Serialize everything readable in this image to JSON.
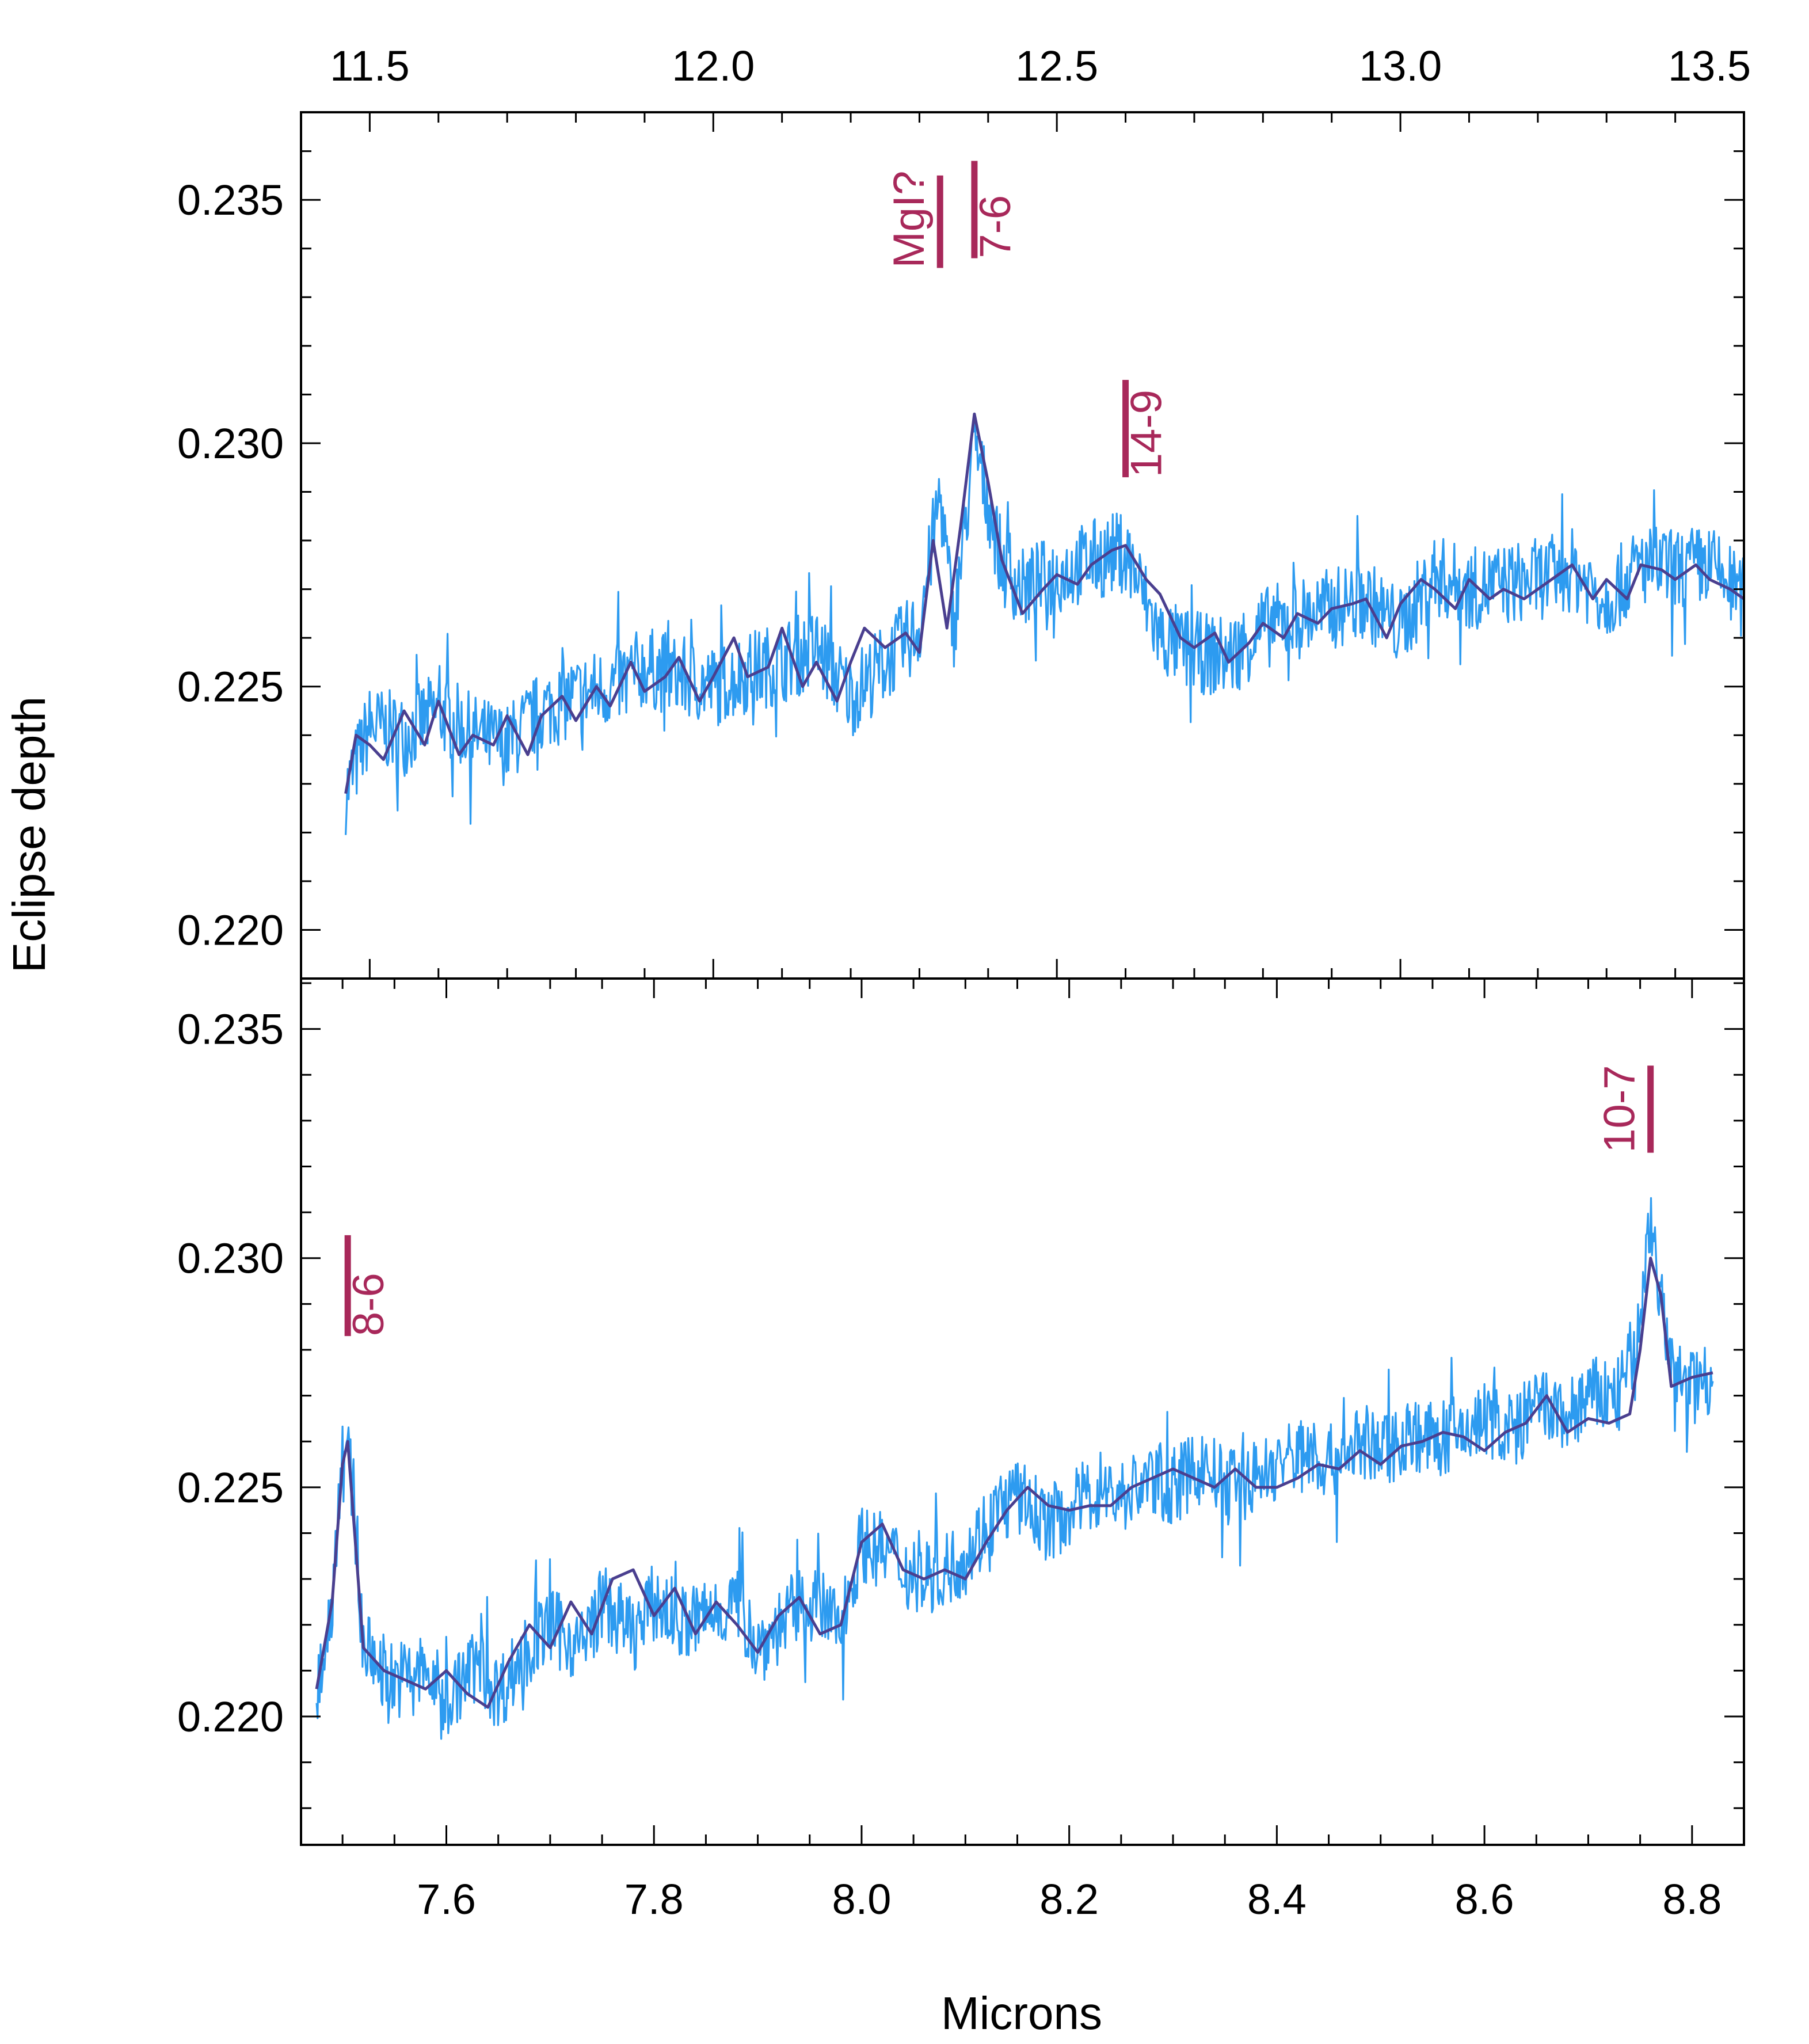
{
  "figure": {
    "ylabel": "Eclipse depth",
    "xlabel_bottom": "Microns"
  },
  "colors": {
    "noisy": "#2d9bf0",
    "smooth": "#4a3f8f",
    "marker": "#a8285a",
    "axes": "#000000"
  },
  "chart_data": [
    {
      "type": "line",
      "panel": "top",
      "xlim": [
        11.4,
        13.5
      ],
      "ylim": [
        0.219,
        0.2368
      ],
      "xticks": [
        "11.5",
        "12.0",
        "12.5",
        "13.0",
        "13.5"
      ],
      "xtick_values": [
        11.5,
        12.0,
        12.5,
        13.0,
        13.5
      ],
      "yticks": [
        "0.220",
        "0.225",
        "0.230",
        "0.235"
      ],
      "ytick_values": [
        0.22,
        0.225,
        0.23,
        0.235
      ],
      "xaxis_position": "top",
      "series": [
        {
          "style": "noisy",
          "x": [
            11.465,
            11.5,
            11.55,
            11.6,
            11.65,
            11.7,
            11.75,
            11.8,
            11.85,
            11.9,
            11.95,
            12.0,
            12.05,
            12.1,
            12.15,
            12.2,
            12.25,
            12.3,
            12.33,
            12.35,
            12.38,
            12.4,
            12.42,
            12.45,
            12.5,
            12.55,
            12.6,
            12.65,
            12.7,
            12.75,
            12.8,
            12.85,
            12.9,
            12.95,
            13.0,
            13.05,
            13.1,
            13.15,
            13.2,
            13.25,
            13.3,
            13.35,
            13.4,
            13.45,
            13.5
          ],
          "y": [
            0.2228,
            0.2242,
            0.224,
            0.2245,
            0.224,
            0.2238,
            0.2245,
            0.2248,
            0.225,
            0.2254,
            0.2252,
            0.225,
            0.2253,
            0.2255,
            0.2258,
            0.2248,
            0.2255,
            0.2262,
            0.229,
            0.2262,
            0.23,
            0.2288,
            0.2275,
            0.227,
            0.2273,
            0.2276,
            0.2278,
            0.226,
            0.2257,
            0.2256,
            0.2262,
            0.2264,
            0.2266,
            0.2268,
            0.2262,
            0.2273,
            0.227,
            0.2271,
            0.2272,
            0.2274,
            0.2268,
            0.2275,
            0.2274,
            0.2275,
            0.2268
          ]
        },
        {
          "style": "smooth",
          "x": [
            11.465,
            11.48,
            11.5,
            11.52,
            11.55,
            11.58,
            11.6,
            11.63,
            11.65,
            11.68,
            11.7,
            11.73,
            11.75,
            11.78,
            11.8,
            11.83,
            11.85,
            11.88,
            11.9,
            11.93,
            11.95,
            11.98,
            12.0,
            12.03,
            12.05,
            12.08,
            12.1,
            12.13,
            12.15,
            12.18,
            12.2,
            12.22,
            12.25,
            12.28,
            12.3,
            12.32,
            12.34,
            12.36,
            12.38,
            12.4,
            12.42,
            12.45,
            12.48,
            12.5,
            12.53,
            12.55,
            12.58,
            12.6,
            12.63,
            12.65,
            12.68,
            12.7,
            12.73,
            12.75,
            12.78,
            12.8,
            12.83,
            12.85,
            12.88,
            12.9,
            12.93,
            12.95,
            12.98,
            13.0,
            13.03,
            13.05,
            13.08,
            13.1,
            13.13,
            13.15,
            13.18,
            13.2,
            13.23,
            13.25,
            13.28,
            13.3,
            13.33,
            13.35,
            13.38,
            13.4,
            13.43,
            13.45,
            13.48,
            13.5
          ],
          "y": [
            0.2228,
            0.224,
            0.2238,
            0.2235,
            0.2245,
            0.2238,
            0.2247,
            0.2236,
            0.224,
            0.2238,
            0.2244,
            0.2236,
            0.2244,
            0.2248,
            0.2243,
            0.225,
            0.2246,
            0.2255,
            0.2249,
            0.2252,
            0.2256,
            0.2247,
            0.2252,
            0.226,
            0.2252,
            0.2254,
            0.2262,
            0.225,
            0.2255,
            0.2247,
            0.2255,
            0.2262,
            0.2258,
            0.2261,
            0.2257,
            0.228,
            0.2262,
            0.2283,
            0.2306,
            0.2292,
            0.2276,
            0.2265,
            0.227,
            0.2273,
            0.2271,
            0.2275,
            0.2278,
            0.2279,
            0.2272,
            0.2269,
            0.226,
            0.2258,
            0.2261,
            0.2255,
            0.2259,
            0.2263,
            0.226,
            0.2265,
            0.2263,
            0.2266,
            0.2267,
            0.2268,
            0.226,
            0.2267,
            0.2272,
            0.227,
            0.2266,
            0.2272,
            0.2268,
            0.227,
            0.2268,
            0.227,
            0.2273,
            0.2275,
            0.2268,
            0.2272,
            0.2268,
            0.2275,
            0.2274,
            0.2272,
            0.2275,
            0.2272,
            0.227,
            0.2268
          ]
        }
      ],
      "annotations": [
        {
          "text": "MgI?",
          "x": 12.33,
          "y_bottom": 0.2336,
          "y_top": 0.2355,
          "label_side": "left"
        },
        {
          "text": "7-6",
          "x": 12.38,
          "y_bottom": 0.2338,
          "y_top": 0.2358,
          "label_side": "right"
        },
        {
          "text": "14-9",
          "x": 12.6,
          "y_bottom": 0.2293,
          "y_top": 0.2313,
          "label_side": "right"
        }
      ]
    },
    {
      "type": "line",
      "panel": "bottom",
      "xlim": [
        7.46,
        8.85
      ],
      "ylim": [
        0.2172,
        0.2361
      ],
      "xticks": [
        "7.6",
        "7.8",
        "8.0",
        "8.2",
        "8.4",
        "8.6",
        "8.8"
      ],
      "xtick_values": [
        7.6,
        7.8,
        8.0,
        8.2,
        8.4,
        8.6,
        8.8
      ],
      "yticks": [
        "0.220",
        "0.225",
        "0.230",
        "0.235"
      ],
      "ytick_values": [
        0.22,
        0.225,
        0.23,
        0.235
      ],
      "xaxis_position": "bottom",
      "xlabel": "Microns",
      "series": [
        {
          "style": "noisy",
          "x": [
            7.475,
            7.49,
            7.5,
            7.51,
            7.52,
            7.55,
            7.58,
            7.6,
            7.63,
            7.65,
            7.68,
            7.7,
            7.73,
            7.75,
            7.78,
            7.8,
            7.83,
            7.85,
            7.88,
            7.9,
            7.93,
            7.95,
            7.98,
            8.0,
            8.03,
            8.05,
            8.08,
            8.1,
            8.13,
            8.15,
            8.18,
            8.2,
            8.23,
            8.25,
            8.28,
            8.3,
            8.33,
            8.35,
            8.38,
            8.4,
            8.43,
            8.45,
            8.48,
            8.5,
            8.53,
            8.55,
            8.58,
            8.6,
            8.63,
            8.65,
            8.68,
            8.7,
            8.73,
            8.75,
            8.76,
            8.77,
            8.78,
            8.8,
            8.82
          ],
          "y": [
            0.2205,
            0.2225,
            0.2262,
            0.225,
            0.2215,
            0.2208,
            0.221,
            0.2203,
            0.2212,
            0.2205,
            0.2215,
            0.222,
            0.2215,
            0.2225,
            0.2218,
            0.2225,
            0.222,
            0.2222,
            0.2225,
            0.2215,
            0.2222,
            0.2225,
            0.222,
            0.2238,
            0.2235,
            0.223,
            0.2232,
            0.2235,
            0.2245,
            0.2248,
            0.2242,
            0.2245,
            0.225,
            0.2248,
            0.2252,
            0.225,
            0.2255,
            0.225,
            0.2252,
            0.2255,
            0.2258,
            0.2255,
            0.226,
            0.2258,
            0.2262,
            0.226,
            0.2262,
            0.2265,
            0.2262,
            0.2268,
            0.2265,
            0.227,
            0.227,
            0.2285,
            0.231,
            0.229,
            0.2275,
            0.2272,
            0.2275
          ]
        },
        {
          "style": "smooth",
          "x": [
            7.475,
            7.49,
            7.5,
            7.505,
            7.51,
            7.52,
            7.54,
            7.56,
            7.58,
            7.6,
            7.62,
            7.64,
            7.66,
            7.68,
            7.7,
            7.72,
            7.74,
            7.76,
            7.78,
            7.8,
            7.82,
            7.84,
            7.86,
            7.88,
            7.9,
            7.92,
            7.94,
            7.96,
            7.98,
            8.0,
            8.02,
            8.04,
            8.06,
            8.08,
            8.1,
            8.12,
            8.14,
            8.16,
            8.18,
            8.2,
            8.22,
            8.24,
            8.26,
            8.28,
            8.3,
            8.32,
            8.34,
            8.36,
            8.38,
            8.4,
            8.42,
            8.44,
            8.46,
            8.48,
            8.5,
            8.52,
            8.54,
            8.56,
            8.58,
            8.6,
            8.62,
            8.64,
            8.66,
            8.68,
            8.7,
            8.72,
            8.74,
            8.75,
            8.76,
            8.77,
            8.78,
            8.8,
            8.82
          ],
          "y": [
            0.2206,
            0.2225,
            0.2255,
            0.226,
            0.2245,
            0.2215,
            0.221,
            0.2208,
            0.2206,
            0.221,
            0.2205,
            0.2202,
            0.2212,
            0.222,
            0.2215,
            0.2225,
            0.2218,
            0.223,
            0.2232,
            0.2222,
            0.2228,
            0.2218,
            0.2225,
            0.222,
            0.2214,
            0.2222,
            0.2226,
            0.2218,
            0.222,
            0.2238,
            0.2242,
            0.2232,
            0.223,
            0.2232,
            0.223,
            0.2238,
            0.2245,
            0.225,
            0.2246,
            0.2245,
            0.2246,
            0.2246,
            0.225,
            0.2252,
            0.2254,
            0.2252,
            0.225,
            0.2254,
            0.225,
            0.225,
            0.2252,
            0.2255,
            0.2254,
            0.2258,
            0.2255,
            0.2259,
            0.226,
            0.2262,
            0.2261,
            0.2258,
            0.2262,
            0.2264,
            0.227,
            0.2262,
            0.2265,
            0.2264,
            0.2266,
            0.228,
            0.23,
            0.2292,
            0.2272,
            0.2274,
            0.2275
          ]
        }
      ],
      "annotations": [
        {
          "text": "8-6",
          "x": 7.505,
          "y_bottom": 0.2283,
          "y_top": 0.2305,
          "label_side": "right"
        },
        {
          "text": "10-7",
          "x": 8.76,
          "y_bottom": 0.2323,
          "y_top": 0.2342,
          "label_side": "left"
        }
      ]
    }
  ]
}
